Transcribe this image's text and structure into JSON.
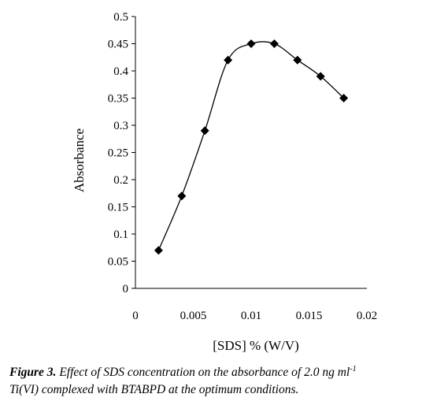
{
  "chart_data": {
    "type": "line",
    "xlabel": "[SDS]  % (W/V)",
    "ylabel": "Absorbance",
    "xlim": [
      0,
      0.02
    ],
    "ylim": [
      0,
      0.5
    ],
    "x_ticks": [
      "0",
      "0.005",
      "0.01",
      "0.015",
      "0.02"
    ],
    "y_ticks": [
      "0",
      "0.05",
      "0.1",
      "0.15",
      "0.2",
      "0.25",
      "0.3",
      "0.35",
      "0.4",
      "0.45",
      "0.5"
    ],
    "grid": false,
    "marker": "diamond",
    "line_style": "smooth",
    "color": "#000000",
    "series": [
      {
        "x": [
          0.002,
          0.004,
          0.006,
          0.008,
          0.01,
          0.012,
          0.014,
          0.016,
          0.018
        ],
        "y": [
          0.07,
          0.17,
          0.29,
          0.42,
          0.45,
          0.45,
          0.42,
          0.39,
          0.35
        ]
      }
    ]
  },
  "caption": {
    "label": "Figure 3.",
    "text_1": " Effect of SDS concentration on the absorbance of 2.0 ng ml",
    "superscript": "-1",
    "text_2": "Ti(VI) complexed with BTABPD  at the optimum conditions."
  }
}
